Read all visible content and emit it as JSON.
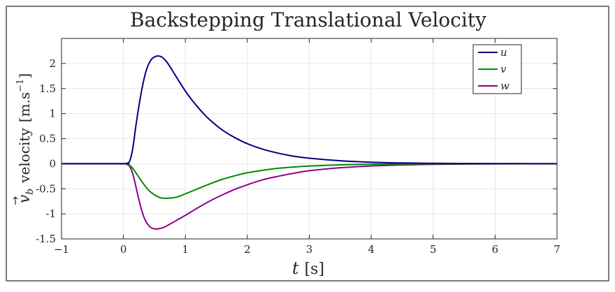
{
  "chart_data": {
    "type": "line",
    "title": "Backstepping Translational Velocity",
    "xlabel": {
      "var": "t",
      "unit": "[s]"
    },
    "ylabel": {
      "vec": "v",
      "sub": "b",
      "word": "velocity",
      "unit": "[m.s",
      "exp": "−1",
      "close": "]"
    },
    "xlim": [
      -1,
      7
    ],
    "ylim": [
      -1.5,
      2.5
    ],
    "xticks": [
      -1,
      0,
      1,
      2,
      3,
      4,
      5,
      6,
      7
    ],
    "xtick_labels": [
      "−1",
      "0",
      "1",
      "2",
      "3",
      "4",
      "5",
      "6",
      "7"
    ],
    "yticks": [
      -1.5,
      -1,
      -0.5,
      0,
      0.5,
      1,
      1.5,
      2
    ],
    "ytick_labels": [
      "-1.5",
      "-1",
      "-0.5",
      "0",
      "0.5",
      "1",
      "1.5",
      "2"
    ],
    "grid": true,
    "legend_position": "top-right",
    "series": [
      {
        "name": "u",
        "color": "#000080",
        "x": [
          -1,
          0,
          0.05,
          0.1,
          0.15,
          0.2,
          0.25,
          0.3,
          0.35,
          0.4,
          0.45,
          0.5,
          0.55,
          0.6,
          0.65,
          0.7,
          0.75,
          0.8,
          0.9,
          1.0,
          1.1,
          1.2,
          1.3,
          1.4,
          1.6,
          1.8,
          2.0,
          2.25,
          2.5,
          2.75,
          3.0,
          3.5,
          4.0,
          4.5,
          5.0,
          5.5,
          6.0,
          7.0
        ],
        "y": [
          0,
          0,
          0.01,
          0.05,
          0.3,
          0.75,
          1.15,
          1.5,
          1.78,
          1.97,
          2.08,
          2.13,
          2.15,
          2.14,
          2.1,
          2.03,
          1.94,
          1.84,
          1.64,
          1.45,
          1.28,
          1.13,
          0.99,
          0.87,
          0.67,
          0.52,
          0.4,
          0.29,
          0.21,
          0.15,
          0.11,
          0.06,
          0.03,
          0.015,
          0.008,
          0.004,
          0.002,
          0.0
        ]
      },
      {
        "name": "v",
        "color": "#008c00",
        "x": [
          -1,
          0,
          0.05,
          0.1,
          0.15,
          0.2,
          0.3,
          0.4,
          0.5,
          0.6,
          0.7,
          0.8,
          0.9,
          1.0,
          1.2,
          1.4,
          1.6,
          1.8,
          2.0,
          2.25,
          2.5,
          2.75,
          3.0,
          3.5,
          4.0,
          4.5,
          5.0,
          5.5,
          6.0,
          7.0
        ],
        "y": [
          0,
          0,
          -0.005,
          -0.03,
          -0.09,
          -0.18,
          -0.36,
          -0.52,
          -0.62,
          -0.68,
          -0.69,
          -0.68,
          -0.65,
          -0.6,
          -0.5,
          -0.4,
          -0.31,
          -0.24,
          -0.18,
          -0.13,
          -0.09,
          -0.065,
          -0.045,
          -0.022,
          -0.01,
          -0.005,
          -0.002,
          -0.001,
          0,
          0
        ]
      },
      {
        "name": "w",
        "color": "#8c008c",
        "x": [
          -1,
          0,
          0.05,
          0.1,
          0.15,
          0.2,
          0.25,
          0.3,
          0.35,
          0.4,
          0.45,
          0.5,
          0.55,
          0.6,
          0.65,
          0.7,
          0.8,
          0.9,
          1.0,
          1.2,
          1.4,
          1.6,
          1.8,
          2.0,
          2.25,
          2.5,
          2.75,
          3.0,
          3.5,
          4.0,
          4.5,
          5.0,
          5.5,
          6.0,
          7.0
        ],
        "y": [
          0,
          0,
          -0.01,
          -0.05,
          -0.2,
          -0.45,
          -0.72,
          -0.95,
          -1.12,
          -1.22,
          -1.28,
          -1.3,
          -1.3,
          -1.29,
          -1.27,
          -1.24,
          -1.17,
          -1.1,
          -1.03,
          -0.88,
          -0.74,
          -0.62,
          -0.51,
          -0.42,
          -0.32,
          -0.25,
          -0.19,
          -0.14,
          -0.08,
          -0.045,
          -0.025,
          -0.013,
          -0.007,
          -0.003,
          0
        ]
      }
    ]
  }
}
